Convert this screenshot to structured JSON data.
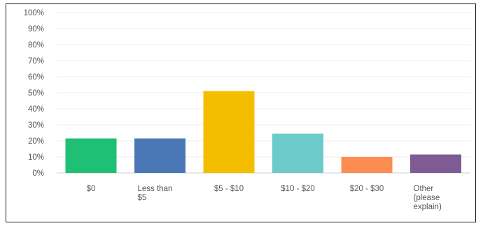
{
  "chart_data": {
    "type": "bar",
    "title": "",
    "xlabel": "",
    "ylabel": "",
    "ylim": [
      0,
      100
    ],
    "yticks": [
      "0%",
      "10%",
      "20%",
      "30%",
      "40%",
      "50%",
      "60%",
      "70%",
      "80%",
      "90%",
      "100%"
    ],
    "grid": true,
    "legend": "none",
    "categories": [
      [
        "$0"
      ],
      [
        "Less than",
        "$5"
      ],
      [
        "$5 - $10"
      ],
      [
        "$10 - $20"
      ],
      [
        "$20 - $30"
      ],
      [
        "Other",
        "(please",
        "explain)"
      ]
    ],
    "values": [
      21.5,
      21.5,
      51,
      24.5,
      10,
      11.5
    ],
    "colors": [
      "#1fbf75",
      "#4a77b5",
      "#f5bd00",
      "#6ccacb",
      "#fc8d52",
      "#7e5b94"
    ]
  }
}
